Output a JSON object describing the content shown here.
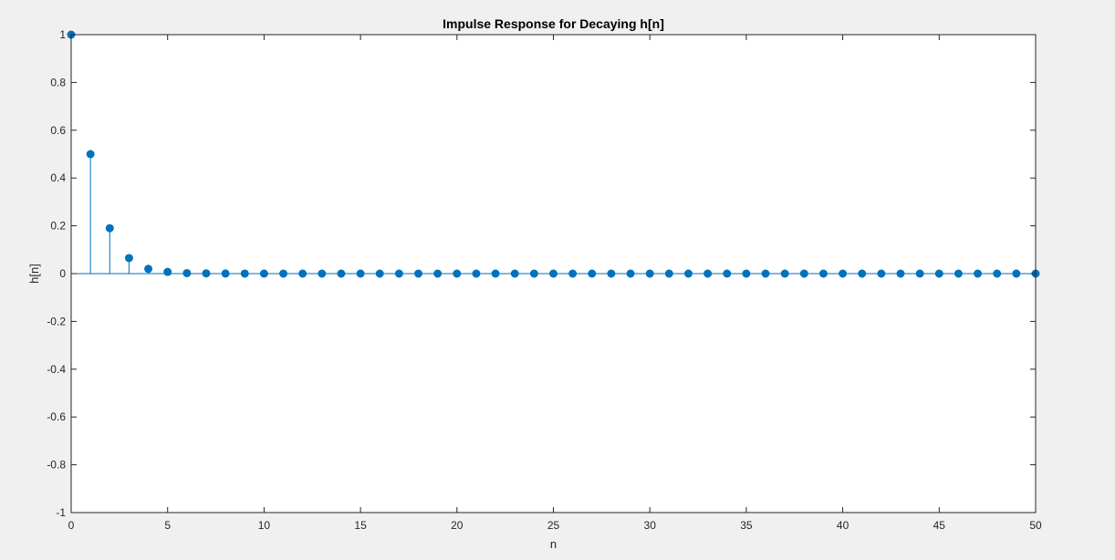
{
  "chart_data": {
    "type": "stem",
    "title": "Impulse Response for Decaying h[n]",
    "xlabel": "n",
    "ylabel": "h[n]",
    "xlim": [
      0,
      50
    ],
    "ylim": [
      -1,
      1
    ],
    "xticks": [
      "0",
      "5",
      "10",
      "15",
      "20",
      "25",
      "30",
      "35",
      "40",
      "45",
      "50"
    ],
    "yticks": [
      "-1",
      "-0.8",
      "-0.6",
      "-0.4",
      "-0.2",
      "0",
      "0.2",
      "0.4",
      "0.6",
      "0.8",
      "1"
    ],
    "grid": false,
    "x": [
      0,
      1,
      2,
      3,
      4,
      5,
      6,
      7,
      8,
      9,
      10,
      11,
      12,
      13,
      14,
      15,
      16,
      17,
      18,
      19,
      20,
      21,
      22,
      23,
      24,
      25,
      26,
      27,
      28,
      29,
      30,
      31,
      32,
      33,
      34,
      35,
      36,
      37,
      38,
      39,
      40,
      41,
      42,
      43,
      44,
      45,
      46,
      47,
      48,
      49,
      50
    ],
    "values": [
      1,
      0.5,
      0.19,
      0.065,
      0.02,
      0.007,
      0.002,
      0.001,
      0.0003,
      0.0001,
      0,
      0,
      0,
      0,
      0,
      0,
      0,
      0,
      0,
      0,
      0,
      0,
      0,
      0,
      0,
      0,
      0,
      0,
      0,
      0,
      0,
      0,
      0,
      0,
      0,
      0,
      0,
      0,
      0,
      0,
      0,
      0,
      0,
      0,
      0,
      0,
      0,
      0,
      0,
      0,
      0
    ],
    "color": "#0072bd"
  }
}
